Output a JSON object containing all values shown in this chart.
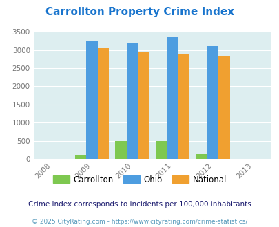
{
  "title": "Carrollton Property Crime Index",
  "title_color": "#1874cd",
  "years": [
    2009,
    2010,
    2011,
    2012
  ],
  "x_ticks": [
    2008,
    2009,
    2010,
    2011,
    2012,
    2013
  ],
  "carrollton": [
    100,
    500,
    500,
    130
  ],
  "ohio": [
    3250,
    3210,
    3350,
    3100
  ],
  "national": [
    3050,
    2950,
    2900,
    2850
  ],
  "bar_colors": {
    "carrollton": "#7ec850",
    "ohio": "#4d9de0",
    "national": "#f0a030"
  },
  "ylim": [
    0,
    3500
  ],
  "yticks": [
    0,
    500,
    1000,
    1500,
    2000,
    2500,
    3000,
    3500
  ],
  "plot_bg": "#ddeef0",
  "bar_width": 0.28,
  "legend_labels": [
    "Carrollton",
    "Ohio",
    "National"
  ],
  "footnote1": "Crime Index corresponds to incidents per 100,000 inhabitants",
  "footnote2": "© 2025 CityRating.com - https://www.cityrating.com/crime-statistics/",
  "footnote1_color": "#1a1a6e",
  "footnote2_color": "#5599bb",
  "footnote1_size": 7.5,
  "footnote2_size": 6.5,
  "title_fontsize": 11
}
